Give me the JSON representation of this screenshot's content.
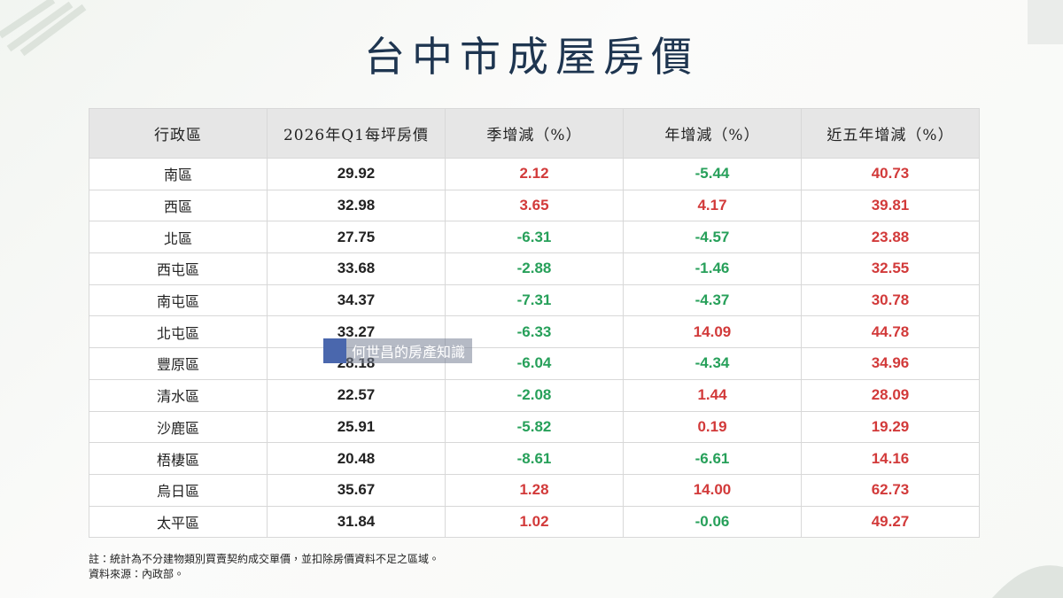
{
  "title": "台中市成屋房價",
  "table": {
    "header": [
      "行政區",
      "2026年Q1每坪房價",
      "季增減（%）",
      "年增減（%）",
      "近五年增減（%）"
    ],
    "rows": [
      [
        "南區",
        "29.92",
        "2.12",
        "-5.44",
        "40.73"
      ],
      [
        "西區",
        "32.98",
        "3.65",
        "4.17",
        "39.81"
      ],
      [
        "北區",
        "27.75",
        "-6.31",
        "-4.57",
        "23.88"
      ],
      [
        "西屯區",
        "33.68",
        "-2.88",
        "-1.46",
        "32.55"
      ],
      [
        "南屯區",
        "34.37",
        "-7.31",
        "-4.37",
        "30.78"
      ],
      [
        "北屯區",
        "33.27",
        "-6.33",
        "14.09",
        "44.78"
      ],
      [
        "豐原區",
        "28.18",
        "-6.04",
        "-4.34",
        "34.96"
      ],
      [
        "清水區",
        "22.57",
        "-2.08",
        "1.44",
        "28.09"
      ],
      [
        "沙鹿區",
        "25.91",
        "-5.82",
        "0.19",
        "19.29"
      ],
      [
        "梧棲區",
        "20.48",
        "-8.61",
        "-6.61",
        "14.16"
      ],
      [
        "烏日區",
        "35.67",
        "1.28",
        "14.00",
        "62.73"
      ],
      [
        "太平區",
        "31.84",
        "1.02",
        "-0.06",
        "49.27"
      ]
    ]
  },
  "watermark": "何世昌的房產知識",
  "notes": [
    "註：統計為不分建物類別買賣契約成交單價，並扣除房價資料不足之區域。",
    "資料來源：內政部。"
  ]
}
